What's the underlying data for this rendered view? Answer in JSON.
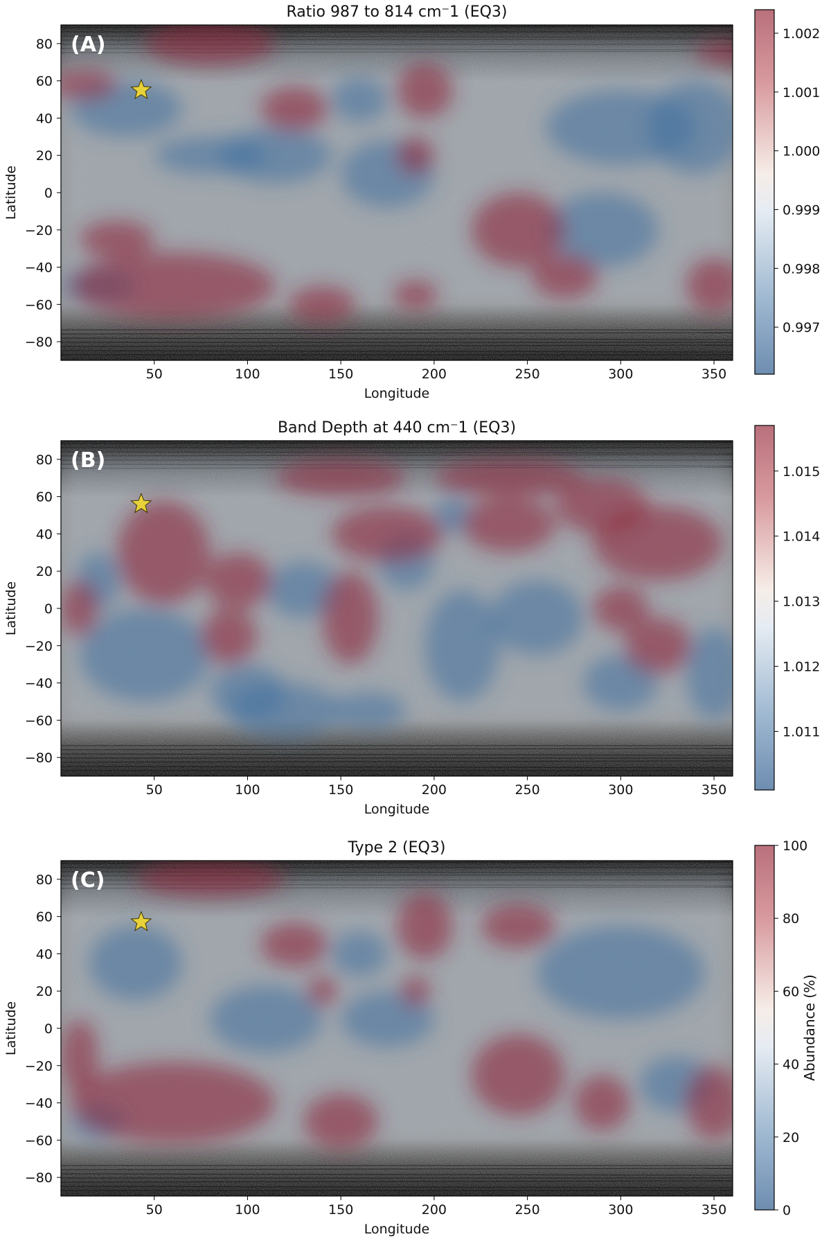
{
  "chart_data": [
    {
      "type": "heatmap",
      "panel_label": "(A)",
      "title": "Ratio 987 to 814 cm⁻1 (EQ3)",
      "xlabel": "Longitude",
      "ylabel": "Latitude",
      "xlim": [
        0,
        360
      ],
      "ylim": [
        -90,
        90
      ],
      "xticks": [
        "50",
        "100",
        "150",
        "200",
        "250",
        "300",
        "350"
      ],
      "yticks": [
        "80",
        "60",
        "40",
        "20",
        "0",
        "−20",
        "−40",
        "−60",
        "−80"
      ],
      "colorbar": {
        "label": "",
        "ticks": [
          "1.002",
          "1.001",
          "1.000",
          "0.999",
          "0.998",
          "0.997"
        ],
        "range": [
          0.9962,
          1.0024
        ]
      },
      "marker": {
        "shape": "star",
        "longitude": 43,
        "latitude": 55
      },
      "high_regions": [
        [
          80,
          80,
          35,
          12
        ],
        [
          12,
          58,
          18,
          8
        ],
        [
          195,
          55,
          15,
          15
        ],
        [
          125,
          45,
          18,
          12
        ],
        [
          190,
          20,
          10,
          10
        ],
        [
          245,
          -20,
          25,
          20
        ],
        [
          60,
          -50,
          55,
          18
        ],
        [
          30,
          -25,
          20,
          10
        ],
        [
          140,
          -60,
          18,
          10
        ],
        [
          190,
          -55,
          12,
          8
        ],
        [
          350,
          -50,
          15,
          15
        ],
        [
          270,
          -45,
          18,
          12
        ],
        [
          355,
          75,
          15,
          7
        ]
      ],
      "low_regions": [
        [
          35,
          45,
          30,
          15
        ],
        [
          115,
          20,
          30,
          15
        ],
        [
          80,
          20,
          30,
          10
        ],
        [
          300,
          35,
          40,
          20
        ],
        [
          340,
          35,
          25,
          25
        ],
        [
          175,
          10,
          25,
          18
        ],
        [
          160,
          50,
          15,
          12
        ],
        [
          290,
          -20,
          30,
          20
        ],
        [
          20,
          -50,
          20,
          10
        ]
      ]
    },
    {
      "type": "heatmap",
      "panel_label": "(B)",
      "title": "Band Depth at 440 cm⁻1 (EQ3)",
      "xlabel": "Longitude",
      "ylabel": "Latitude",
      "xlim": [
        0,
        360
      ],
      "ylim": [
        -90,
        90
      ],
      "xticks": [
        "50",
        "100",
        "150",
        "200",
        "250",
        "300",
        "350"
      ],
      "yticks": [
        "80",
        "60",
        "40",
        "20",
        "0",
        "−20",
        "−40",
        "−60",
        "−80"
      ],
      "colorbar": {
        "label": "",
        "ticks": [
          "1.015",
          "1.014",
          "1.013",
          "1.012",
          "1.011"
        ],
        "range": [
          1.0101,
          1.0157
        ]
      },
      "marker": {
        "shape": "star",
        "longitude": 43,
        "latitude": 56
      },
      "high_regions": [
        [
          55,
          30,
          25,
          28
        ],
        [
          95,
          15,
          18,
          15
        ],
        [
          175,
          40,
          30,
          15
        ],
        [
          320,
          35,
          35,
          20
        ],
        [
          290,
          55,
          25,
          15
        ],
        [
          240,
          45,
          25,
          15
        ],
        [
          300,
          0,
          15,
          12
        ],
        [
          320,
          -20,
          18,
          15
        ],
        [
          155,
          -5,
          15,
          25
        ],
        [
          90,
          -15,
          15,
          15
        ],
        [
          10,
          0,
          10,
          15
        ],
        [
          150,
          70,
          35,
          10
        ],
        [
          240,
          70,
          40,
          10
        ]
      ],
      "low_regions": [
        [
          45,
          -25,
          35,
          25
        ],
        [
          120,
          -55,
          30,
          15
        ],
        [
          215,
          -20,
          20,
          30
        ],
        [
          255,
          -5,
          25,
          20
        ],
        [
          185,
          25,
          15,
          15
        ],
        [
          130,
          10,
          20,
          15
        ],
        [
          350,
          -35,
          15,
          25
        ],
        [
          20,
          15,
          12,
          15
        ],
        [
          300,
          -40,
          20,
          15
        ],
        [
          100,
          -45,
          20,
          15
        ],
        [
          210,
          50,
          10,
          10
        ],
        [
          165,
          -55,
          20,
          10
        ]
      ]
    },
    {
      "type": "heatmap",
      "panel_label": "(C)",
      "title": "Type 2 (EQ3)",
      "xlabel": "Longitude",
      "ylabel": "Latitude",
      "xlim": [
        0,
        360
      ],
      "ylim": [
        -90,
        90
      ],
      "xticks": [
        "50",
        "100",
        "150",
        "200",
        "250",
        "300",
        "350"
      ],
      "yticks": [
        "80",
        "60",
        "40",
        "20",
        "0",
        "−20",
        "−40",
        "−60",
        "−80"
      ],
      "colorbar": {
        "label": "Abundance (%)",
        "ticks": [
          "100",
          "80",
          "60",
          "40",
          "20",
          "0"
        ],
        "range": [
          0,
          100
        ]
      },
      "marker": {
        "shape": "star",
        "longitude": 43,
        "latitude": 57
      },
      "high_regions": [
        [
          80,
          80,
          40,
          10
        ],
        [
          125,
          45,
          18,
          12
        ],
        [
          195,
          55,
          15,
          18
        ],
        [
          245,
          55,
          20,
          12
        ],
        [
          60,
          -40,
          55,
          22
        ],
        [
          150,
          -50,
          20,
          15
        ],
        [
          245,
          -25,
          25,
          22
        ],
        [
          290,
          -40,
          15,
          15
        ],
        [
          350,
          -40,
          15,
          20
        ],
        [
          190,
          20,
          8,
          8
        ],
        [
          140,
          20,
          8,
          8
        ],
        [
          10,
          -15,
          10,
          20
        ]
      ],
      "low_regions": [
        [
          40,
          35,
          25,
          20
        ],
        [
          110,
          5,
          30,
          18
        ],
        [
          300,
          30,
          45,
          25
        ],
        [
          160,
          40,
          15,
          12
        ],
        [
          175,
          5,
          25,
          15
        ],
        [
          20,
          -50,
          15,
          10
        ],
        [
          330,
          -30,
          20,
          15
        ]
      ]
    }
  ]
}
